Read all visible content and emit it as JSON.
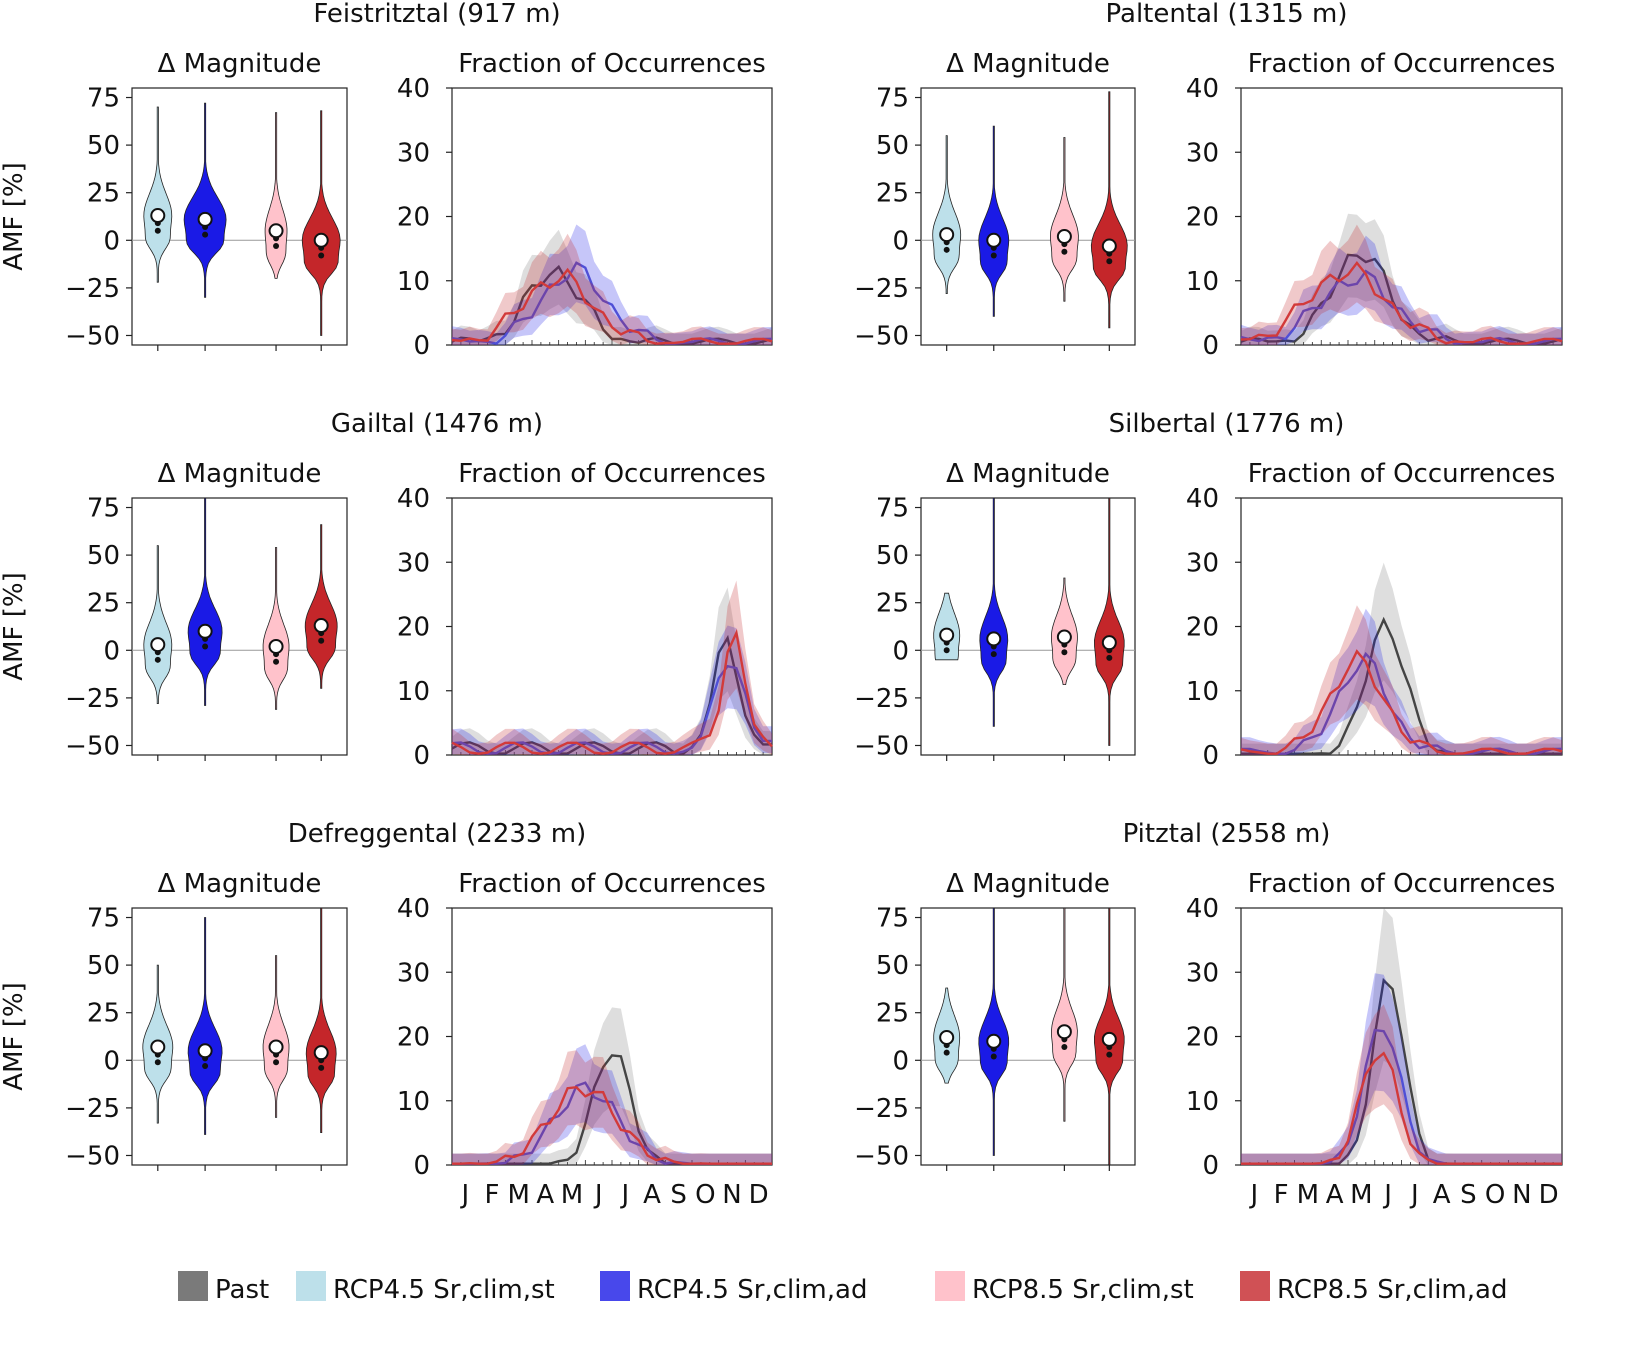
{
  "figure": {
    "colors": {
      "past": "#7a7a7a",
      "rcp45_st": "#bde0ea",
      "rcp45_ad": "#1a1ae6",
      "rcp85_st": "#ffc2cb",
      "rcp85_ad": "#c4262a",
      "line_past": "#444444",
      "line45": "#4f4fd6",
      "line85": "#d23a3a"
    },
    "legend": [
      {
        "key": "past",
        "label": "Past"
      },
      {
        "key": "rcp45_st",
        "label": "RCP4.5 Sr,clim,st"
      },
      {
        "key": "rcp45_ad",
        "label": "RCP4.5 Sr,clim,ad"
      },
      {
        "key": "rcp85_st",
        "label": "RCP8.5 Sr,clim,st"
      },
      {
        "key": "rcp85_ad",
        "label": "RCP8.5 Sr,clim,ad"
      }
    ],
    "month_labels": [
      "J",
      "F",
      "M",
      "A",
      "M",
      "J",
      "J",
      "A",
      "S",
      "O",
      "N",
      "D"
    ]
  },
  "chart_data": [
    {
      "type": "violin",
      "site": "Feistritztal (917 m)",
      "title": "Δ Magnitude",
      "ylabel": "AMF [%]",
      "ylim": [
        -55,
        80
      ],
      "yticks": [
        75,
        50,
        25,
        0,
        -25,
        -50
      ],
      "series": [
        {
          "name": "RCP4.5 Sr,clim,st",
          "min": -22,
          "max": 70,
          "median": 13,
          "width": 0.28
        },
        {
          "name": "RCP4.5 Sr,clim,ad",
          "min": -30,
          "max": 72,
          "median": 11,
          "width": 0.42
        },
        {
          "name": "RCP8.5 Sr,clim,st",
          "min": -20,
          "max": 67,
          "median": 5,
          "width": 0.22
        },
        {
          "name": "RCP8.5 Sr,clim,ad",
          "min": -50,
          "max": 68,
          "median": 0,
          "width": 0.38
        }
      ]
    },
    {
      "type": "area",
      "title": "Fraction of Occurrences",
      "ylim": [
        0,
        40
      ],
      "yticks": [
        0,
        10,
        20,
        30,
        40
      ],
      "series": [
        {
          "name": "Past",
          "peak_x": 0.32,
          "peak": 11,
          "spread": 0.12,
          "base": 1
        },
        {
          "name": "RCP4.5",
          "peak_x": 0.38,
          "peak": 11,
          "spread": 0.14,
          "base": 1
        },
        {
          "name": "RCP8.5",
          "peak_x": 0.33,
          "peak": 10,
          "spread": 0.15,
          "base": 1
        }
      ]
    },
    {
      "type": "violin",
      "site": "Paltental (1315 m)",
      "title": "Δ Magnitude",
      "ylabel": "",
      "ylim": [
        -55,
        80
      ],
      "yticks": [
        75,
        50,
        25,
        0,
        -25,
        -50
      ],
      "series": [
        {
          "name": "RCP4.5 Sr,clim,st",
          "min": -28,
          "max": 55,
          "median": 3,
          "width": 0.28
        },
        {
          "name": "RCP4.5 Sr,clim,ad",
          "min": -40,
          "max": 60,
          "median": 0,
          "width": 0.3
        },
        {
          "name": "RCP8.5 Sr,clim,st",
          "min": -32,
          "max": 54,
          "median": 2,
          "width": 0.28
        },
        {
          "name": "RCP8.5 Sr,clim,ad",
          "min": -46,
          "max": 78,
          "median": -3,
          "width": 0.36
        }
      ]
    },
    {
      "type": "area",
      "title": "Fraction of Occurrences",
      "ylim": [
        0,
        40
      ],
      "yticks": [
        0,
        10,
        20,
        30,
        40
      ],
      "series": [
        {
          "name": "Past",
          "peak_x": 0.37,
          "peak": 14,
          "spread": 0.12,
          "base": 1
        },
        {
          "name": "RCP4.5",
          "peak_x": 0.36,
          "peak": 10,
          "spread": 0.16,
          "base": 1
        },
        {
          "name": "RCP8.5",
          "peak_x": 0.33,
          "peak": 11,
          "spread": 0.17,
          "base": 1
        }
      ]
    },
    {
      "type": "violin",
      "site": "Gailtal (1476 m)",
      "title": "Δ Magnitude",
      "ylabel": "AMF [%]",
      "ylim": [
        -55,
        80
      ],
      "yticks": [
        75,
        50,
        25,
        0,
        -25,
        -50
      ],
      "series": [
        {
          "name": "RCP4.5 Sr,clim,st",
          "min": -28,
          "max": 55,
          "median": 3,
          "width": 0.28
        },
        {
          "name": "RCP4.5 Sr,clim,ad",
          "min": -29,
          "max": 80,
          "median": 10,
          "width": 0.34
        },
        {
          "name": "RCP8.5 Sr,clim,st",
          "min": -31,
          "max": 54,
          "median": 2,
          "width": 0.26
        },
        {
          "name": "RCP8.5 Sr,clim,ad",
          "min": -20,
          "max": 66,
          "median": 13,
          "width": 0.32
        }
      ]
    },
    {
      "type": "area",
      "title": "Fraction of Occurrences",
      "ylim": [
        0,
        40
      ],
      "yticks": [
        0,
        10,
        20,
        30,
        40
      ],
      "series": [
        {
          "name": "Past",
          "peak_x": 0.86,
          "peak": 16,
          "spread": 0.06,
          "base": 2
        },
        {
          "name": "RCP4.5",
          "peak_x": 0.87,
          "peak": 15,
          "spread": 0.06,
          "base": 2
        },
        {
          "name": "RCP8.5",
          "peak_x": 0.88,
          "peak": 18,
          "spread": 0.05,
          "base": 2
        }
      ]
    },
    {
      "type": "violin",
      "site": "Silbertal (1776 m)",
      "title": "Δ Magnitude",
      "ylabel": "",
      "ylim": [
        -55,
        80
      ],
      "yticks": [
        75,
        50,
        25,
        0,
        -25,
        -50
      ],
      "series": [
        {
          "name": "RCP4.5 Sr,clim,st",
          "min": -5,
          "max": 30,
          "median": 8,
          "width": 0.26
        },
        {
          "name": "RCP4.5 Sr,clim,ad",
          "min": -40,
          "max": 80,
          "median": 6,
          "width": 0.28
        },
        {
          "name": "RCP8.5 Sr,clim,st",
          "min": -18,
          "max": 38,
          "median": 7,
          "width": 0.26
        },
        {
          "name": "RCP8.5 Sr,clim,ad",
          "min": -50,
          "max": 80,
          "median": 4,
          "width": 0.3
        }
      ]
    },
    {
      "type": "area",
      "title": "Fraction of Occurrences",
      "ylim": [
        0,
        40
      ],
      "yticks": [
        0,
        10,
        20,
        30,
        40
      ],
      "series": [
        {
          "name": "Past",
          "peak_x": 0.45,
          "peak": 20,
          "spread": 0.09,
          "base": 0
        },
        {
          "name": "RCP4.5",
          "peak_x": 0.38,
          "peak": 14,
          "spread": 0.11,
          "base": 1
        },
        {
          "name": "RCP8.5",
          "peak_x": 0.36,
          "peak": 14,
          "spread": 0.12,
          "base": 1
        }
      ]
    },
    {
      "type": "violin",
      "site": "Defreggental (2233 m)",
      "title": "Δ Magnitude",
      "ylabel": "AMF [%]",
      "ylim": [
        -55,
        80
      ],
      "yticks": [
        75,
        50,
        25,
        0,
        -25,
        -50
      ],
      "series": [
        {
          "name": "RCP4.5 Sr,clim,st",
          "min": -33,
          "max": 50,
          "median": 7,
          "width": 0.3
        },
        {
          "name": "RCP4.5 Sr,clim,ad",
          "min": -39,
          "max": 75,
          "median": 5,
          "width": 0.34
        },
        {
          "name": "RCP8.5 Sr,clim,st",
          "min": -30,
          "max": 55,
          "median": 7,
          "width": 0.26
        },
        {
          "name": "RCP8.5 Sr,clim,ad",
          "min": -38,
          "max": 80,
          "median": 4,
          "width": 0.3
        }
      ]
    },
    {
      "type": "area",
      "title": "Fraction of Occurrences",
      "ylim": [
        0,
        40
      ],
      "yticks": [
        0,
        10,
        20,
        30,
        40
      ],
      "series": [
        {
          "name": "Past",
          "peak_x": 0.5,
          "peak": 18,
          "spread": 0.08,
          "base": 0
        },
        {
          "name": "RCP4.5",
          "peak_x": 0.42,
          "peak": 12,
          "spread": 0.14,
          "base": 0
        },
        {
          "name": "RCP8.5",
          "peak_x": 0.41,
          "peak": 12,
          "spread": 0.15,
          "base": 0
        }
      ]
    },
    {
      "type": "violin",
      "site": "Pitztal (2558 m)",
      "title": "Δ Magnitude",
      "ylabel": "",
      "ylim": [
        -55,
        80
      ],
      "yticks": [
        75,
        50,
        25,
        0,
        -25,
        -50
      ],
      "series": [
        {
          "name": "RCP4.5 Sr,clim,st",
          "min": -12,
          "max": 38,
          "median": 12,
          "width": 0.26
        },
        {
          "name": "RCP4.5 Sr,clim,ad",
          "min": -50,
          "max": 80,
          "median": 10,
          "width": 0.3
        },
        {
          "name": "RCP8.5 Sr,clim,st",
          "min": -32,
          "max": 80,
          "median": 15,
          "width": 0.26
        },
        {
          "name": "RCP8.5 Sr,clim,ad",
          "min": -55,
          "max": 80,
          "median": 11,
          "width": 0.3
        }
      ]
    },
    {
      "type": "area",
      "title": "Fraction of Occurrences",
      "ylim": [
        0,
        40
      ],
      "yticks": [
        0,
        10,
        20,
        30,
        40
      ],
      "series": [
        {
          "name": "Past",
          "peak_x": 0.46,
          "peak": 29,
          "spread": 0.07,
          "base": 0
        },
        {
          "name": "RCP4.5",
          "peak_x": 0.44,
          "peak": 22,
          "spread": 0.08,
          "base": 0
        },
        {
          "name": "RCP8.5",
          "peak_x": 0.43,
          "peak": 18,
          "spread": 0.08,
          "base": 0
        }
      ]
    }
  ]
}
